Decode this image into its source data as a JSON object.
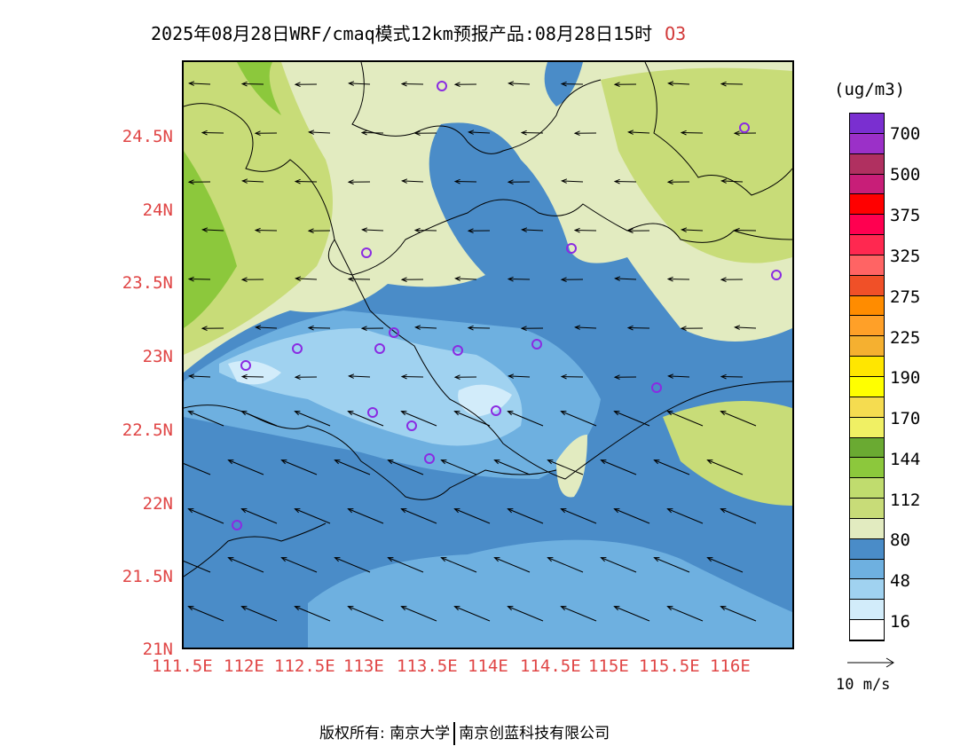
{
  "header": {
    "title": "2025年08月28日WRF/cmaq模式12km预报产品:08月28日15时",
    "pollutant": "O3"
  },
  "map": {
    "lat_labels": [
      "24.5N",
      "24N",
      "23.5N",
      "23N",
      "22.5N",
      "22N",
      "21.5N",
      "21N"
    ],
    "lon_labels": [
      "111.5E",
      "112E",
      "112.5E",
      "113E",
      "113.5E",
      "114E",
      "114.5E",
      "115E",
      "115.5E",
      "116E"
    ]
  },
  "legend": {
    "unit": "(ug/m3)",
    "levels": [
      "700",
      "500",
      "375",
      "325",
      "275",
      "225",
      "190",
      "170",
      "144",
      "112",
      "80",
      "48",
      "16"
    ],
    "colors": [
      "#7a2fd0",
      "#9b30c8",
      "#b03060",
      "#c81e78",
      "#ff0000",
      "#ff0050",
      "#ff2850",
      "#ff6464",
      "#f05028",
      "#ff8c00",
      "#ffa028",
      "#f5b030",
      "#ffe600",
      "#ffff00",
      "#f5dc50",
      "#f0f064",
      "#6aaa32",
      "#8cc83c",
      "#c0dc6e",
      "#c8dc78",
      "#e2ebc0",
      "#4a8cc8",
      "#6eb0e0",
      "#a0d2f0",
      "#d2ecfa",
      "#ffffff"
    ],
    "wind_scale": "10 m/s"
  },
  "footer": {
    "copyright": "版权所有: 南京大学",
    "company": "南京创蓝科技有限公司"
  }
}
